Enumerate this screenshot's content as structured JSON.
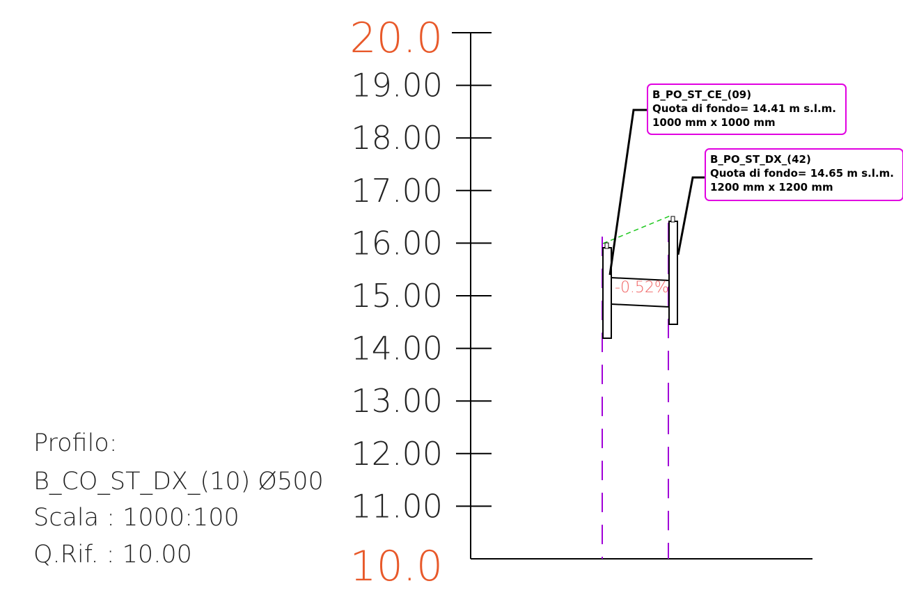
{
  "colors": {
    "major_label": "#e8592a",
    "line": "#000000",
    "tick_text": "#222222",
    "callout_border": "#e100e1",
    "vertical_dash": "#a000d8",
    "ground_dash": "#1ec81e",
    "slope_text": "#f06464"
  },
  "axis": {
    "top_label": "20.0",
    "bottom_label": "10.0",
    "ticks": [
      {
        "value": 19,
        "label": "19.00"
      },
      {
        "value": 18,
        "label": "18.00"
      },
      {
        "value": 17,
        "label": "17.00"
      },
      {
        "value": 16,
        "label": "16.00"
      },
      {
        "value": 15,
        "label": "15.00"
      },
      {
        "value": 14,
        "label": "14.00"
      },
      {
        "value": 13,
        "label": "13.00"
      },
      {
        "value": 12,
        "label": "12.00"
      },
      {
        "value": 11,
        "label": "11.00"
      }
    ]
  },
  "info": {
    "line1": "Profilo:",
    "line2": "B_CO_ST_DX_(10) Ø500",
    "line3": "Scala : 1000:100",
    "line4": "Q.Rif. : 10.00"
  },
  "manholes": [
    {
      "name": "B_PO_ST_CE_(09)",
      "depth_text": "Quota di fondo= 14.41 m s.l.m.",
      "size_text": "1000 mm x 1000 mm",
      "invert": 14.41,
      "ground": 16.05
    },
    {
      "name": "B_PO_ST_DX_(42)",
      "depth_text": "Quota di fondo= 14.65 m s.l.m.",
      "size_text": "1200 mm x 1200 mm",
      "invert": 14.65,
      "ground": 16.55
    }
  ],
  "pipe": {
    "slope_label": "-0.52%",
    "diameter": "Ø500"
  }
}
